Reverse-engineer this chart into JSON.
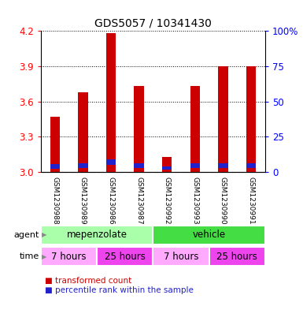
{
  "title": "GDS5057 / 10341430",
  "samples": [
    "GSM1230988",
    "GSM1230989",
    "GSM1230986",
    "GSM1230987",
    "GSM1230992",
    "GSM1230993",
    "GSM1230990",
    "GSM1230991"
  ],
  "red_tops": [
    3.47,
    3.68,
    4.18,
    3.73,
    3.13,
    3.73,
    3.9,
    3.9
  ],
  "blue_tops": [
    3.065,
    3.075,
    3.105,
    3.075,
    3.045,
    3.075,
    3.075,
    3.075
  ],
  "blue_bottoms": [
    3.03,
    3.035,
    3.06,
    3.035,
    3.02,
    3.035,
    3.035,
    3.035
  ],
  "bar_bottom": 3.0,
  "ylim_left": [
    3.0,
    4.2
  ],
  "yticks_left": [
    3.0,
    3.3,
    3.6,
    3.9,
    4.2
  ],
  "yticks_right": [
    0,
    25,
    50,
    75,
    100
  ],
  "ytick_labels_right": [
    "0",
    "25",
    "50",
    "75",
    "100%"
  ],
  "red_color": "#cc0000",
  "blue_color": "#2222cc",
  "bar_width": 0.35,
  "bg_color": "#d0d0d0",
  "plot_bg": "#ffffff",
  "agent_mepenozolate_color": "#aaffaa",
  "agent_vehicle_color": "#44dd44",
  "time_7h_color": "#ffaaff",
  "time_25h_color": "#ee44ee"
}
